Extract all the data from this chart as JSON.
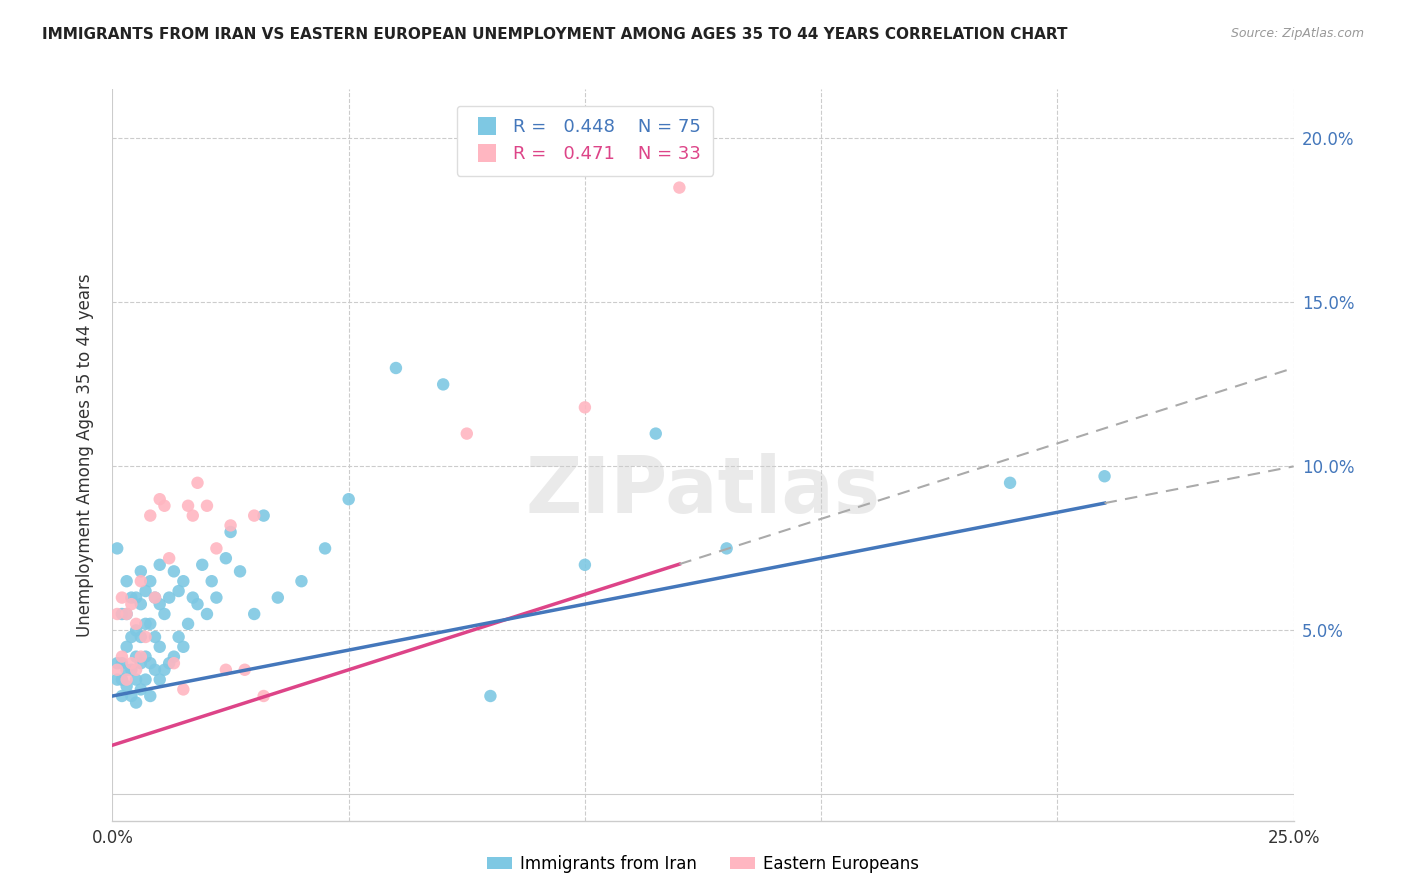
{
  "title": "IMMIGRANTS FROM IRAN VS EASTERN EUROPEAN UNEMPLOYMENT AMONG AGES 35 TO 44 YEARS CORRELATION CHART",
  "source": "Source: ZipAtlas.com",
  "ylabel": "Unemployment Among Ages 35 to 44 years",
  "xlim": [
    0.0,
    0.25
  ],
  "ylim": [
    -0.008,
    0.215
  ],
  "blue_R": "0.448",
  "blue_N": "75",
  "pink_R": "0.471",
  "pink_N": "33",
  "blue_color": "#7ec8e3",
  "pink_color": "#ffb6c1",
  "blue_line_color": "#4477bb",
  "pink_line_color": "#dd4488",
  "watermark": "ZIPatlas",
  "blue_scatter_x": [
    0.001,
    0.001,
    0.001,
    0.002,
    0.002,
    0.002,
    0.002,
    0.003,
    0.003,
    0.003,
    0.003,
    0.003,
    0.004,
    0.004,
    0.004,
    0.004,
    0.005,
    0.005,
    0.005,
    0.005,
    0.005,
    0.006,
    0.006,
    0.006,
    0.006,
    0.006,
    0.007,
    0.007,
    0.007,
    0.007,
    0.008,
    0.008,
    0.008,
    0.008,
    0.009,
    0.009,
    0.009,
    0.01,
    0.01,
    0.01,
    0.01,
    0.011,
    0.011,
    0.012,
    0.012,
    0.013,
    0.013,
    0.014,
    0.014,
    0.015,
    0.015,
    0.016,
    0.017,
    0.018,
    0.019,
    0.02,
    0.021,
    0.022,
    0.024,
    0.025,
    0.027,
    0.03,
    0.032,
    0.035,
    0.04,
    0.045,
    0.05,
    0.06,
    0.07,
    0.08,
    0.1,
    0.115,
    0.13,
    0.19,
    0.21
  ],
  "blue_scatter_y": [
    0.035,
    0.04,
    0.075,
    0.03,
    0.035,
    0.04,
    0.055,
    0.033,
    0.038,
    0.045,
    0.055,
    0.065,
    0.03,
    0.038,
    0.048,
    0.06,
    0.028,
    0.035,
    0.042,
    0.05,
    0.06,
    0.032,
    0.04,
    0.048,
    0.058,
    0.068,
    0.035,
    0.042,
    0.052,
    0.062,
    0.03,
    0.04,
    0.052,
    0.065,
    0.038,
    0.048,
    0.06,
    0.035,
    0.045,
    0.058,
    0.07,
    0.038,
    0.055,
    0.04,
    0.06,
    0.042,
    0.068,
    0.048,
    0.062,
    0.045,
    0.065,
    0.052,
    0.06,
    0.058,
    0.07,
    0.055,
    0.065,
    0.06,
    0.072,
    0.08,
    0.068,
    0.055,
    0.085,
    0.06,
    0.065,
    0.075,
    0.09,
    0.13,
    0.125,
    0.03,
    0.07,
    0.11,
    0.075,
    0.095,
    0.097
  ],
  "pink_scatter_x": [
    0.001,
    0.001,
    0.002,
    0.002,
    0.003,
    0.003,
    0.004,
    0.004,
    0.005,
    0.005,
    0.006,
    0.006,
    0.007,
    0.008,
    0.009,
    0.01,
    0.011,
    0.012,
    0.013,
    0.015,
    0.016,
    0.017,
    0.018,
    0.02,
    0.022,
    0.024,
    0.025,
    0.028,
    0.03,
    0.032,
    0.075,
    0.1,
    0.12
  ],
  "pink_scatter_y": [
    0.038,
    0.055,
    0.042,
    0.06,
    0.035,
    0.055,
    0.04,
    0.058,
    0.038,
    0.052,
    0.042,
    0.065,
    0.048,
    0.085,
    0.06,
    0.09,
    0.088,
    0.072,
    0.04,
    0.032,
    0.088,
    0.085,
    0.095,
    0.088,
    0.075,
    0.038,
    0.082,
    0.038,
    0.085,
    0.03,
    0.11,
    0.118,
    0.185
  ]
}
